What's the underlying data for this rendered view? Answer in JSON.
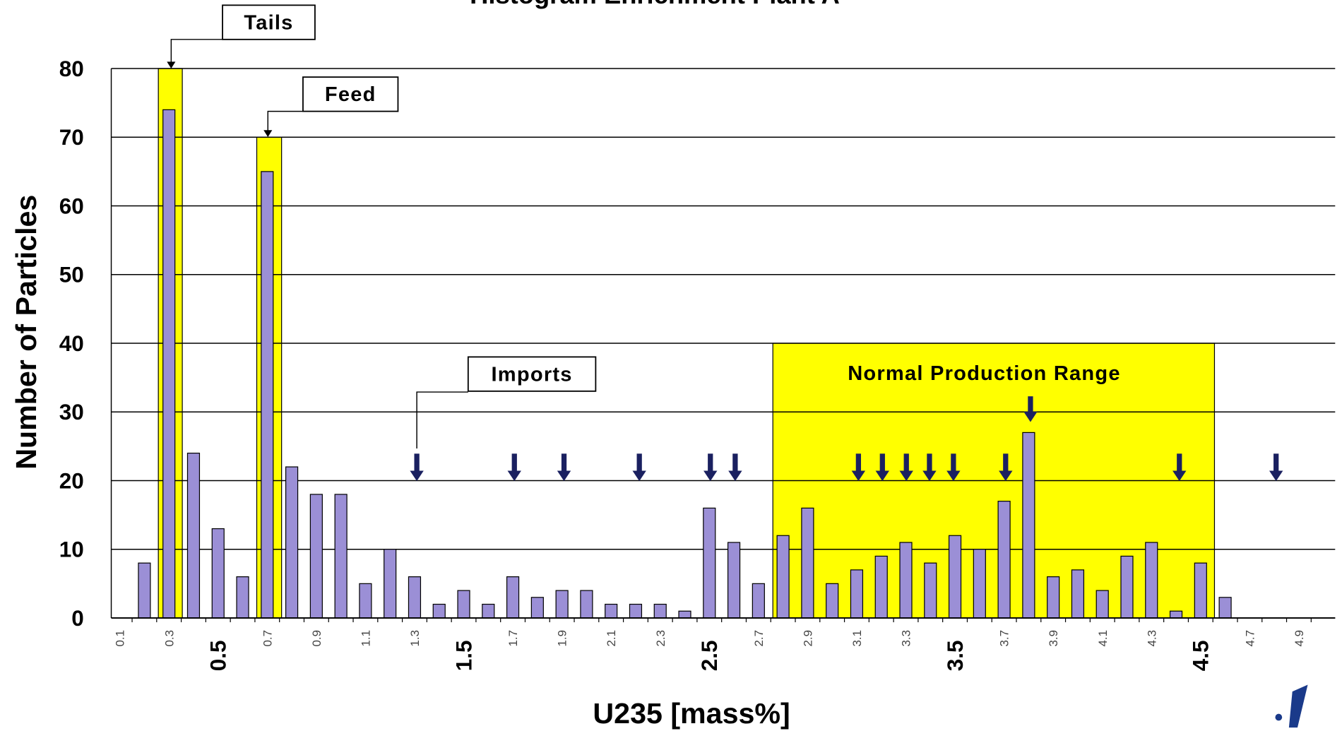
{
  "chart_data": {
    "type": "bar",
    "title": "Histogram Enrichment Plant A",
    "x_label": "U235 [mass%]",
    "y_label": "Number of Particles",
    "categories": [
      "0.1",
      null,
      "0.3",
      null,
      null,
      null,
      "0.7",
      null,
      "0.9",
      null,
      "1.1",
      null,
      "1.3",
      null,
      null,
      null,
      "1.7",
      null,
      "1.9",
      null,
      "2.1",
      null,
      "2.3",
      null,
      null,
      null,
      "2.7",
      null,
      "2.9",
      null,
      "3.1",
      null,
      "3.3",
      null,
      null,
      null,
      "3.7",
      null,
      "3.9",
      null,
      "4.1",
      null,
      "4.3",
      null,
      null,
      null,
      "4.7",
      null,
      "4.9"
    ],
    "major_categories": [
      null,
      null,
      null,
      null,
      "0.5",
      null,
      null,
      null,
      null,
      null,
      null,
      null,
      null,
      null,
      "1.5",
      null,
      null,
      null,
      null,
      null,
      null,
      null,
      null,
      null,
      "2.5",
      null,
      null,
      null,
      null,
      null,
      null,
      null,
      null,
      null,
      "3.5",
      null,
      null,
      null,
      null,
      null,
      null,
      null,
      null,
      null,
      "4.5",
      null,
      null,
      null,
      null
    ],
    "values": [
      0,
      8,
      74,
      24,
      13,
      6,
      65,
      22,
      18,
      18,
      5,
      10,
      6,
      2,
      4,
      2,
      6,
      3,
      4,
      4,
      2,
      2,
      2,
      1,
      16,
      11,
      5,
      12,
      16,
      5,
      7,
      9,
      11,
      8,
      12,
      10,
      17,
      27,
      6,
      7,
      4,
      9,
      11,
      1,
      8,
      3,
      0,
      0,
      0
    ],
    "color": "#9b8fd6",
    "ylim": [
      0,
      80
    ],
    "yticks": [
      0,
      10,
      20,
      30,
      40,
      50,
      60,
      70,
      80
    ],
    "grid": true,
    "annotations": [
      "Tails",
      "Feed",
      "Imports",
      "Normal Production Range"
    ]
  }
}
